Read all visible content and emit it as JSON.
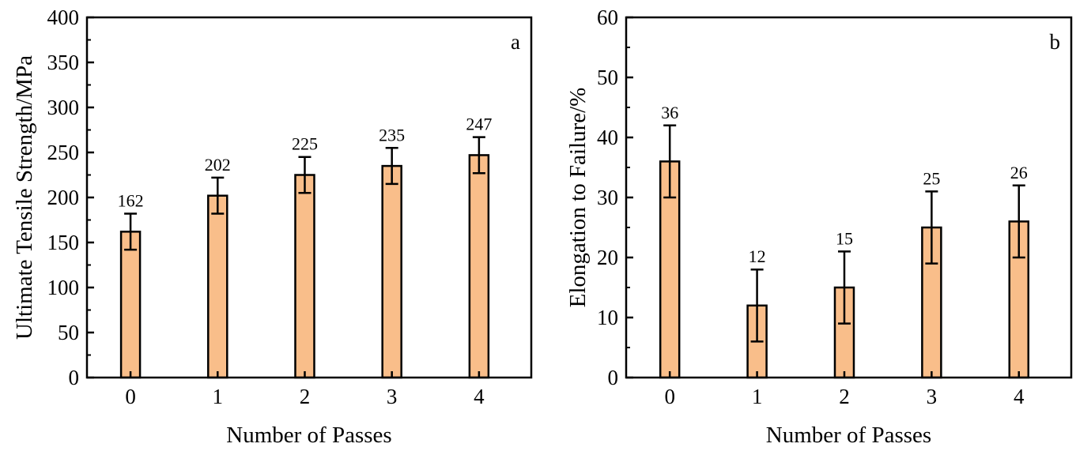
{
  "colors": {
    "bar_fill": "#f9be8a",
    "stroke": "#000000",
    "background": "#ffffff"
  },
  "chart_data": [
    {
      "type": "bar",
      "panel_label": "a",
      "categories": [
        "0",
        "1",
        "2",
        "3",
        "4"
      ],
      "values": [
        162,
        202,
        225,
        235,
        247
      ],
      "errors": [
        20,
        20,
        20,
        20,
        20
      ],
      "value_labels": [
        "162",
        "202",
        "225",
        "235",
        "247"
      ],
      "xlabel": "Number of Passes",
      "ylabel": "Ultimate Tensile Strength/MPa",
      "ylim": [
        0,
        400
      ],
      "yticks": [
        0,
        50,
        100,
        150,
        200,
        250,
        300,
        350,
        400
      ],
      "grid": false,
      "legend": "none"
    },
    {
      "type": "bar",
      "panel_label": "b",
      "categories": [
        "0",
        "1",
        "2",
        "3",
        "4"
      ],
      "values": [
        36,
        12,
        15,
        25,
        26
      ],
      "errors": [
        6,
        6,
        6,
        6,
        6
      ],
      "value_labels": [
        "36",
        "12",
        "15",
        "25",
        "26"
      ],
      "xlabel": "Number of Passes",
      "ylabel": "Elongation to Failure/%",
      "ylim": [
        0,
        60
      ],
      "yticks": [
        0,
        10,
        20,
        30,
        40,
        50,
        60
      ],
      "grid": false,
      "legend": "none"
    }
  ]
}
